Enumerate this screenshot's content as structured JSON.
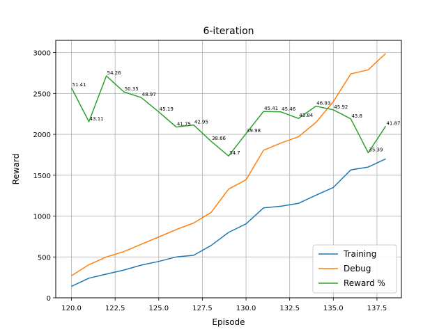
{
  "chart_data": {
    "type": "line",
    "title": "6-iteration",
    "xlabel": "Episode",
    "ylabel": "Reward",
    "xlim": [
      119.1,
      138.9
    ],
    "ylim": [
      0,
      3150
    ],
    "grid": true,
    "legend_position": "lower-right",
    "x": [
      120,
      121,
      122,
      123,
      124,
      125,
      126,
      127,
      128,
      129,
      130,
      131,
      132,
      133,
      134,
      135,
      136,
      137,
      138
    ],
    "x_ticks": [
      120.0,
      122.5,
      125.0,
      127.5,
      130.0,
      132.5,
      135.0,
      137.5
    ],
    "x_tick_labels": [
      "120.0",
      "122.5",
      "125.0",
      "127.5",
      "130.0",
      "132.5",
      "135.0",
      "137.5"
    ],
    "y_ticks": [
      0,
      500,
      1000,
      1500,
      2000,
      2500,
      3000
    ],
    "y_tick_labels": [
      "0",
      "500",
      "1000",
      "1500",
      "2000",
      "2500",
      "3000"
    ],
    "series": [
      {
        "name": "Training",
        "color": "#1f77b4",
        "values": [
          140,
          240,
          290,
          340,
          400,
          445,
          500,
          520,
          640,
          800,
          905,
          1100,
          1120,
          1155,
          1255,
          1350,
          1565,
          1600,
          1700
        ]
      },
      {
        "name": "Debug",
        "color": "#ff7f0e",
        "values": [
          270,
          405,
          500,
          565,
          655,
          745,
          835,
          915,
          1045,
          1330,
          1445,
          1805,
          1895,
          1970,
          2145,
          2400,
          2740,
          2790,
          2990
        ]
      },
      {
        "name": "Reward %",
        "color": "#2ca02c",
        "values": [
          2570,
          2155,
          2715,
          2520,
          2450,
          2275,
          2090,
          2115,
          1915,
          1735,
          2010,
          2280,
          2275,
          2195,
          2345,
          2300,
          2190,
          1775,
          2100
        ],
        "labels": [
          "51.41",
          "43.11",
          "54.26",
          "50.35",
          "48.97",
          "45.19",
          "41.75",
          "42.95",
          "38.66",
          "34.7",
          "39.98",
          "45.41",
          "45.46",
          "43.84",
          "46.93",
          "45.92",
          "43.8",
          "35.39",
          "41.87"
        ]
      }
    ]
  }
}
